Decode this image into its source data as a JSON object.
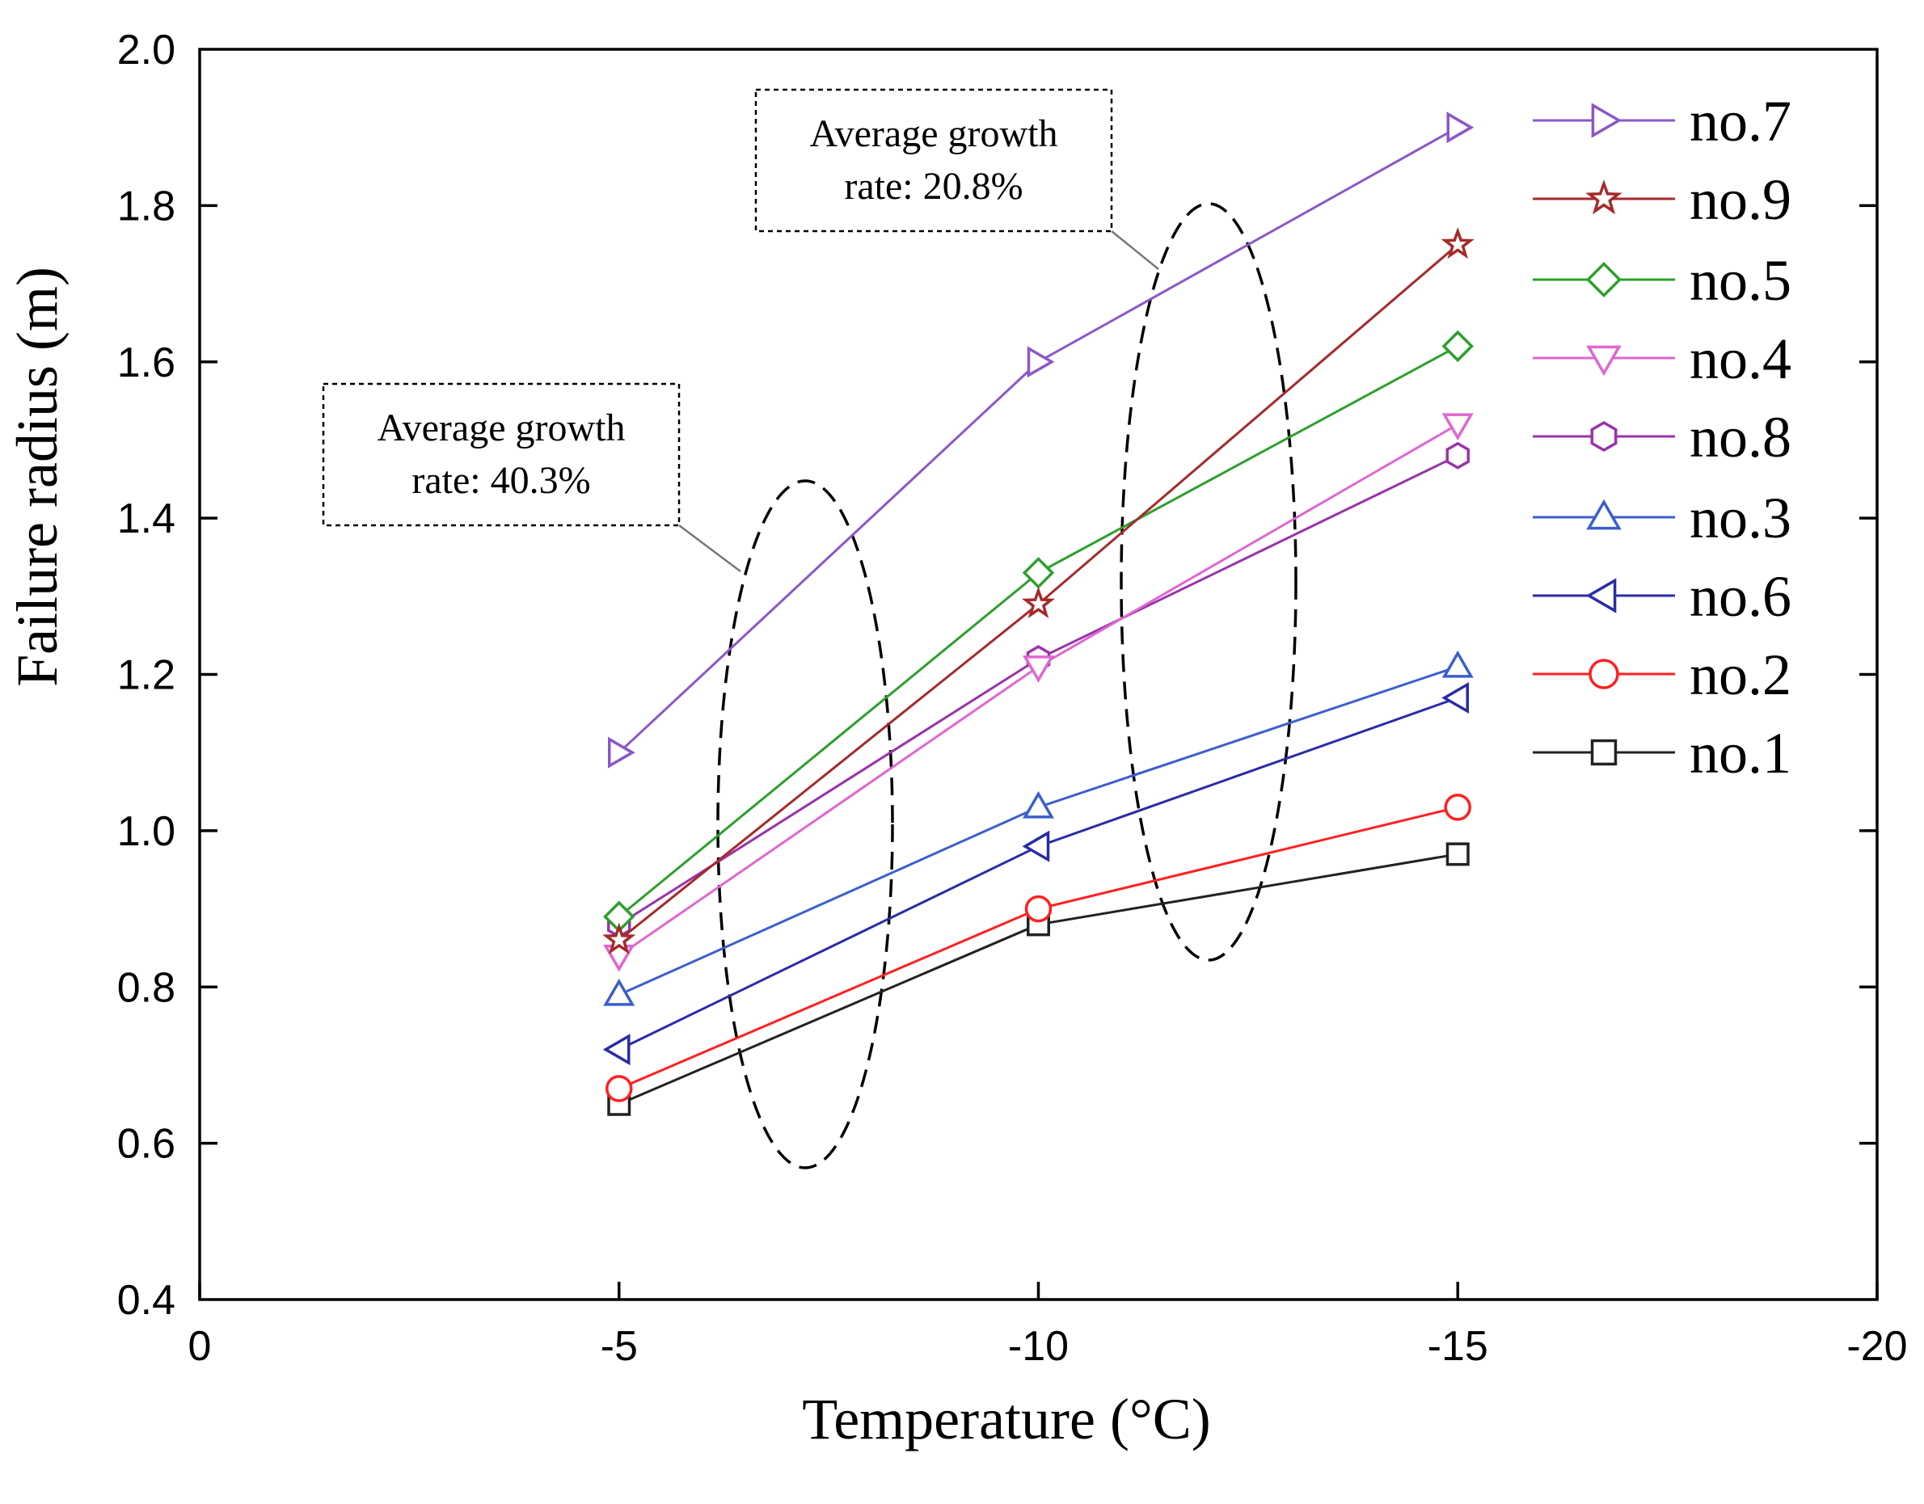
{
  "chart_data": {
    "type": "line",
    "xlabel": "Temperature (°C)",
    "ylabel": "Failure radius (m)",
    "xlim": [
      0,
      -20
    ],
    "ylim": [
      0.4,
      2.0
    ],
    "x_ticks": [
      0,
      -5,
      -10,
      -15,
      -20
    ],
    "x_tick_labels": [
      "0",
      "-5",
      "-10",
      "-15",
      "-20"
    ],
    "y_ticks": [
      0.4,
      0.6,
      0.8,
      1.0,
      1.2,
      1.4,
      1.6,
      1.8,
      2.0
    ],
    "y_tick_labels": [
      "0.4",
      "0.6",
      "0.8",
      "1.0",
      "1.2",
      "1.4",
      "1.6",
      "1.8",
      "2.0"
    ],
    "x": [
      -5,
      -10,
      -15
    ],
    "series": [
      {
        "name": "no.7",
        "values": [
          1.1,
          1.6,
          1.9
        ],
        "color": "#8b57c9",
        "marker": "triangle-right"
      },
      {
        "name": "no.9",
        "values": [
          0.86,
          1.29,
          1.75
        ],
        "color": "#a52a2a",
        "marker": "star"
      },
      {
        "name": "no.5",
        "values": [
          0.89,
          1.33,
          1.62
        ],
        "color": "#2ca02c",
        "marker": "diamond"
      },
      {
        "name": "no.4",
        "values": [
          0.84,
          1.21,
          1.52
        ],
        "color": "#e066d0",
        "marker": "triangle-down"
      },
      {
        "name": "no.8",
        "values": [
          0.88,
          1.22,
          1.48
        ],
        "color": "#9933aa",
        "marker": "hexagon"
      },
      {
        "name": "no.3",
        "values": [
          0.79,
          1.03,
          1.21
        ],
        "color": "#3a5fcd",
        "marker": "triangle-up"
      },
      {
        "name": "no.6",
        "values": [
          0.72,
          0.98,
          1.17
        ],
        "color": "#2b2ba8",
        "marker": "triangle-left"
      },
      {
        "name": "no.2",
        "values": [
          0.67,
          0.9,
          1.03
        ],
        "color": "#ff2020",
        "marker": "circle"
      },
      {
        "name": "no.1",
        "values": [
          0.65,
          0.88,
          0.97
        ],
        "color": "#222222",
        "marker": "square"
      }
    ],
    "legend": {
      "placement": "right",
      "groups": [
        [
          "no.7",
          "no.9"
        ],
        [
          "no.5",
          "no.4",
          "no.8"
        ],
        [
          "no.3",
          "no.6",
          "no.2",
          "no.1"
        ]
      ]
    },
    "annotations": [
      {
        "lines": [
          "Average growth",
          "rate: 40.3%"
        ],
        "target_x": -7.2
      },
      {
        "lines": [
          "Average growth",
          "rate: 20.8%"
        ],
        "target_x": -12.1
      }
    ],
    "grid": false
  }
}
